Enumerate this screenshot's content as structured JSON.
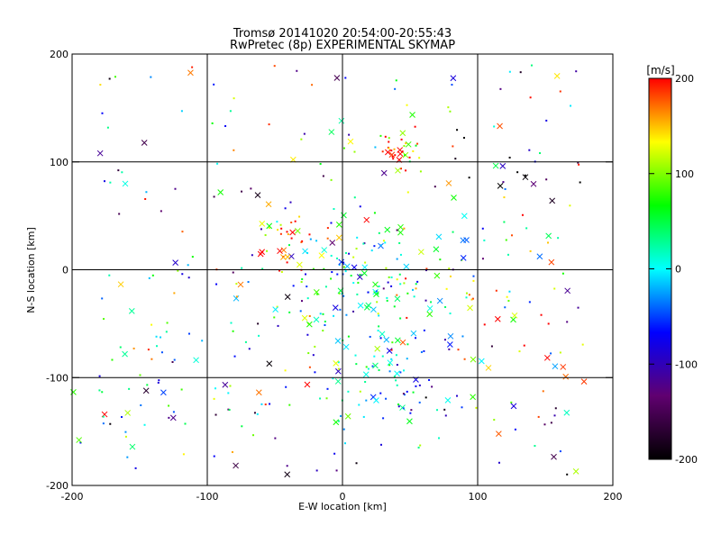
{
  "chart_data": {
    "type": "scatter",
    "title": "Tromsø 20141020 20:54:00-20:55:43",
    "subtitle": "RwPretec (8p) EXPERIMENTAL SKYMAP",
    "xlabel": "E-W location [km]",
    "ylabel": "N-S location [km]",
    "xlim": [
      -200,
      200
    ],
    "ylim": [
      -200,
      200
    ],
    "xticks": [
      -200,
      -100,
      0,
      100,
      200
    ],
    "yticks": [
      -200,
      -100,
      0,
      100,
      200
    ],
    "grid": true,
    "colorbar": {
      "label": "[m/s]",
      "range": [
        -200,
        200
      ],
      "ticks": [
        200,
        100,
        0,
        -100,
        -200
      ],
      "colors": [
        "#000000",
        "#600070",
        "#0000ff",
        "#00ffff",
        "#00ff00",
        "#ffff00",
        "#ff0000"
      ],
      "placement": "right"
    },
    "markers": [
      "dot",
      "x"
    ],
    "clusters": [
      {
        "center": [
          45,
          105
        ],
        "spread": 10,
        "count": 35,
        "velocity": 180
      },
      {
        "center": [
          10,
          -20
        ],
        "spread": 35,
        "count": 140,
        "velocity": 30
      },
      {
        "center": [
          20,
          -100
        ],
        "spread": 30,
        "count": 60,
        "velocity": 20
      },
      {
        "center": [
          -40,
          20
        ],
        "spread": 15,
        "count": 30,
        "velocity": 170
      },
      {
        "center": [
          80,
          10
        ],
        "spread": 30,
        "count": 25,
        "velocity": 60
      },
      {
        "center": [
          130,
          95
        ],
        "spread": 20,
        "count": 15,
        "velocity": -200
      },
      {
        "center": [
          60,
          -120
        ],
        "spread": 15,
        "count": 20,
        "velocity": -80
      },
      {
        "center": [
          -120,
          -100
        ],
        "spread": 45,
        "count": 40,
        "velocity": 0
      },
      {
        "center": [
          120,
          -40
        ],
        "spread": 30,
        "count": 20,
        "velocity": 180
      }
    ],
    "background_points": 260
  }
}
